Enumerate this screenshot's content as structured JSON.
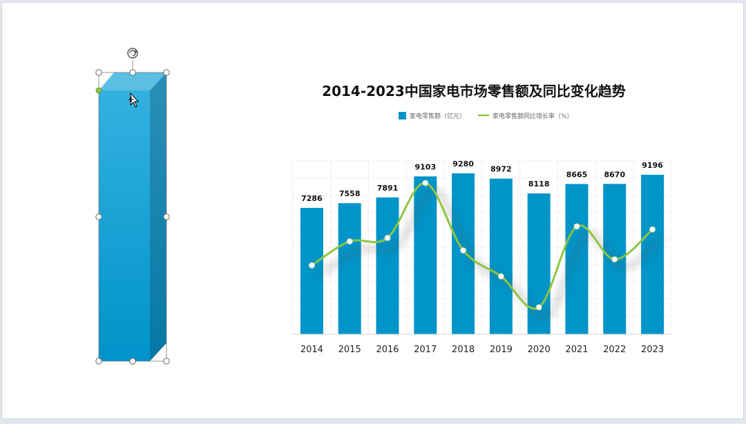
{
  "chart_data": {
    "type": "bar",
    "title": "2014-2023中国家电市场零售额及同比变化趋势",
    "categories": [
      "2014",
      "2015",
      "2016",
      "2017",
      "2018",
      "2019",
      "2020",
      "2021",
      "2022",
      "2023"
    ],
    "series": [
      {
        "name": "家电零售额（亿元）",
        "type": "bar",
        "values": [
          7286,
          7558,
          7891,
          9103,
          9280,
          8972,
          8118,
          8665,
          8670,
          9196
        ],
        "color": "#0094c8"
      },
      {
        "name": "家电零售额同比增长率（%）",
        "type": "line",
        "smooth": true,
        "values": [
          -1.1,
          3.7,
          4.4,
          15.4,
          1.9,
          -3.3,
          -9.5,
          6.7,
          0.1,
          6.1
        ],
        "color": "#8cc63f"
      }
    ],
    "data_labels": true,
    "legend_position": "top-center",
    "grid": true,
    "axes_visible": false
  },
  "decor": {
    "selected_shape": "3d-bar",
    "rotate_icon": "rotate-handle-icon",
    "cursor_icon": "move-cursor-icon"
  }
}
